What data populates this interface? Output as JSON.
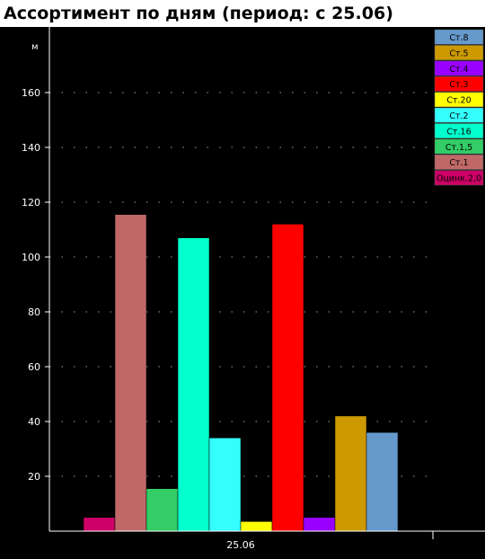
{
  "title": "Ассортимент по дням (период: с  25.06)",
  "chart_data": {
    "type": "bar",
    "title": "Ассортимент по дням (период: с  25.06)",
    "ylabel": "м",
    "xlabel": "",
    "categories": [
      "25.06"
    ],
    "ylim": [
      0,
      175
    ],
    "yticks": [
      20,
      40,
      60,
      80,
      100,
      120,
      140,
      160
    ],
    "grid": true,
    "legend_position": "top-right",
    "series": [
      {
        "name": "Оцинк.2,0",
        "color": "#cc0066",
        "values": [
          5
        ]
      },
      {
        "name": "Ст.1",
        "color": "#c06868",
        "values": [
          115.5
        ]
      },
      {
        "name": "Ст.1,5",
        "color": "#33cc66",
        "values": [
          15.5
        ]
      },
      {
        "name": "Ст.16",
        "color": "#00ffcc",
        "values": [
          107
        ]
      },
      {
        "name": "Ст.2",
        "color": "#33ffff",
        "values": [
          34
        ]
      },
      {
        "name": "Ст.20",
        "color": "#ffff00",
        "values": [
          3.5
        ]
      },
      {
        "name": "Ст.3",
        "color": "#ff0000",
        "values": [
          112
        ]
      },
      {
        "name": "Ст.4",
        "color": "#9900ff",
        "values": [
          5
        ]
      },
      {
        "name": "Ст.5",
        "color": "#cc9900",
        "values": [
          42
        ]
      },
      {
        "name": "Ст.8",
        "color": "#6699cc",
        "values": [
          36
        ]
      }
    ]
  }
}
